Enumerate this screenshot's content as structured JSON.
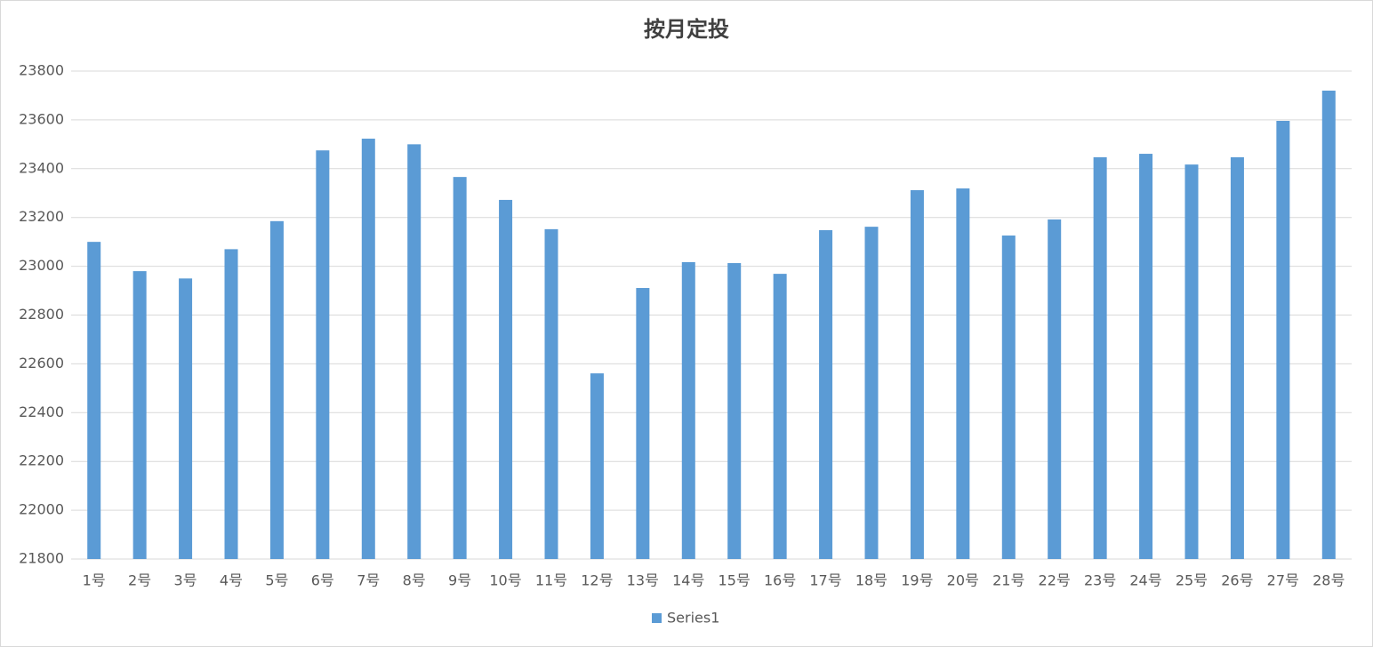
{
  "chart_data": {
    "type": "bar",
    "title": "按月定投",
    "categories": [
      "1号",
      "2号",
      "3号",
      "4号",
      "5号",
      "6号",
      "7号",
      "8号",
      "9号",
      "10号",
      "11号",
      "12号",
      "13号",
      "14号",
      "15号",
      "16号",
      "17号",
      "18号",
      "19号",
      "20号",
      "21号",
      "22号",
      "23号",
      "24号",
      "25号",
      "26号",
      "27号",
      "28号"
    ],
    "series": [
      {
        "name": "Series1",
        "color": "#5b9bd5",
        "values": [
          23100,
          22980,
          22950,
          23070,
          23185,
          23475,
          23523,
          23500,
          23366,
          23272,
          23152,
          22561,
          22911,
          23017,
          23013,
          22969,
          23148,
          23162,
          23312,
          23319,
          23126,
          23192,
          23447,
          23461,
          23417,
          23447,
          23596,
          23720
        ]
      }
    ],
    "ylim": [
      21800,
      23800
    ],
    "yticks": [
      21800,
      22000,
      22200,
      22400,
      22600,
      22800,
      23000,
      23200,
      23400,
      23600,
      23800
    ],
    "grid": true,
    "legend": "bottom"
  }
}
